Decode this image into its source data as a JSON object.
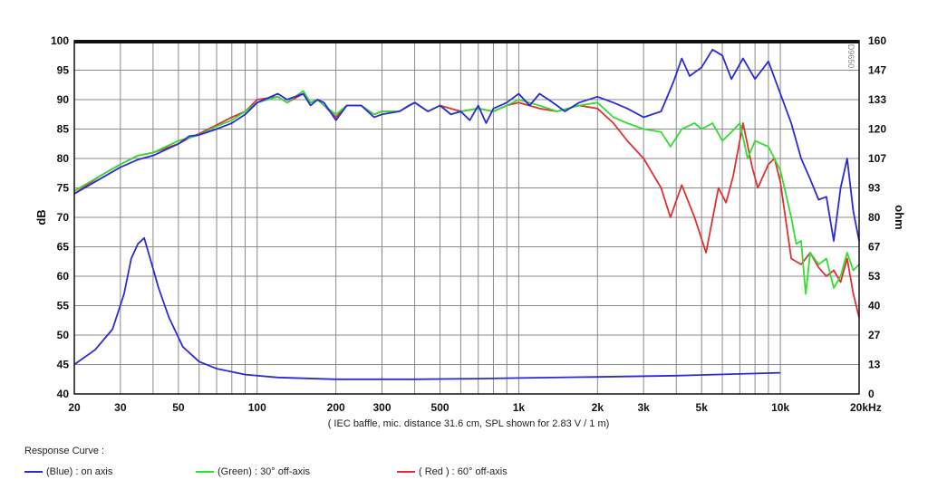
{
  "chart_data": {
    "type": "line",
    "title": "",
    "xlabel": "",
    "x_scale": "log",
    "xlim": [
      20,
      20000
    ],
    "x_ticks": [
      {
        "value": 20,
        "label": "20"
      },
      {
        "value": 30,
        "label": "30"
      },
      {
        "value": 50,
        "label": "50"
      },
      {
        "value": 100,
        "label": "100"
      },
      {
        "value": 200,
        "label": "200"
      },
      {
        "value": 300,
        "label": "300"
      },
      {
        "value": 500,
        "label": "500"
      },
      {
        "value": 1000,
        "label": "1k"
      },
      {
        "value": 2000,
        "label": "2k"
      },
      {
        "value": 3000,
        "label": "3k"
      },
      {
        "value": 5000,
        "label": "5k"
      },
      {
        "value": 10000,
        "label": "10k"
      },
      {
        "value": 20000,
        "label": "20kHz"
      }
    ],
    "ylabel": "dB",
    "ylim": [
      40,
      100
    ],
    "y_ticks": [
      "100",
      "95",
      "90",
      "85",
      "80",
      "75",
      "70",
      "65",
      "60",
      "55",
      "50",
      "45",
      "40"
    ],
    "y2label": "ohm",
    "y2_ticks": [
      "160",
      "147",
      "133",
      "120",
      "107",
      "93",
      "80",
      "67",
      "53",
      "40",
      "27",
      "13",
      "0"
    ],
    "grid": true,
    "note": "( IEC baffle, mic. distance 31.6 cm, SPL shown for 2.83 V / 1 m)",
    "watermark": "D9650",
    "legend_title": "Response Curve :",
    "series": [
      {
        "name": "(Blue) : on axis",
        "color": "#2b2bd6",
        "points": [
          [
            20,
            74
          ],
          [
            25,
            76.5
          ],
          [
            30,
            78.5
          ],
          [
            35,
            79.8
          ],
          [
            40,
            80.5
          ],
          [
            50,
            82.5
          ],
          [
            55,
            83.8
          ],
          [
            60,
            84
          ],
          [
            70,
            85
          ],
          [
            80,
            86
          ],
          [
            90,
            87.5
          ],
          [
            100,
            89.5
          ],
          [
            120,
            91
          ],
          [
            130,
            90
          ],
          [
            150,
            91
          ],
          [
            160,
            89
          ],
          [
            170,
            90
          ],
          [
            180,
            89.5
          ],
          [
            200,
            86.5
          ],
          [
            220,
            89
          ],
          [
            250,
            89
          ],
          [
            280,
            87
          ],
          [
            300,
            87.5
          ],
          [
            350,
            88
          ],
          [
            380,
            89
          ],
          [
            400,
            89.5
          ],
          [
            450,
            88
          ],
          [
            500,
            89
          ],
          [
            550,
            87.5
          ],
          [
            600,
            88
          ],
          [
            650,
            86.5
          ],
          [
            700,
            89
          ],
          [
            750,
            86
          ],
          [
            800,
            88.5
          ],
          [
            900,
            89.5
          ],
          [
            1000,
            91
          ],
          [
            1100,
            89
          ],
          [
            1200,
            91
          ],
          [
            1300,
            90
          ],
          [
            1400,
            89
          ],
          [
            1500,
            88
          ],
          [
            1700,
            89.5
          ],
          [
            2000,
            90.5
          ],
          [
            2300,
            89.5
          ],
          [
            2600,
            88.5
          ],
          [
            3000,
            87
          ],
          [
            3500,
            88
          ],
          [
            3900,
            93
          ],
          [
            4200,
            97
          ],
          [
            4500,
            94
          ],
          [
            5000,
            95.5
          ],
          [
            5500,
            98.5
          ],
          [
            6000,
            97.5
          ],
          [
            6500,
            93.5
          ],
          [
            7200,
            97
          ],
          [
            8000,
            93.5
          ],
          [
            9000,
            96.5
          ],
          [
            10000,
            91
          ],
          [
            11000,
            86
          ],
          [
            12000,
            80
          ],
          [
            13000,
            76.5
          ],
          [
            14000,
            73
          ],
          [
            15000,
            73.5
          ],
          [
            16000,
            66
          ],
          [
            17000,
            75
          ],
          [
            18000,
            80
          ],
          [
            19000,
            71
          ],
          [
            20000,
            66
          ]
        ]
      },
      {
        "name": "(Green) : 30° off-axis",
        "color": "#33dd33",
        "points": [
          [
            20,
            74.5
          ],
          [
            25,
            77
          ],
          [
            30,
            79
          ],
          [
            35,
            80.5
          ],
          [
            40,
            81
          ],
          [
            50,
            83
          ],
          [
            55,
            83.5
          ],
          [
            60,
            84
          ],
          [
            70,
            85.5
          ],
          [
            80,
            86.5
          ],
          [
            90,
            88
          ],
          [
            100,
            89.5
          ],
          [
            120,
            90.5
          ],
          [
            130,
            89.5
          ],
          [
            150,
            91.5
          ],
          [
            160,
            89.5
          ],
          [
            170,
            90
          ],
          [
            180,
            89
          ],
          [
            200,
            87.5
          ],
          [
            220,
            89
          ],
          [
            250,
            89
          ],
          [
            280,
            87.5
          ],
          [
            300,
            88
          ],
          [
            350,
            88
          ],
          [
            400,
            89.5
          ],
          [
            450,
            88
          ],
          [
            500,
            89
          ],
          [
            550,
            87.5
          ],
          [
            600,
            88
          ],
          [
            700,
            88.5
          ],
          [
            800,
            88
          ],
          [
            900,
            89
          ],
          [
            1000,
            90
          ],
          [
            1200,
            89
          ],
          [
            1400,
            88
          ],
          [
            1700,
            89
          ],
          [
            2000,
            89.5
          ],
          [
            2300,
            87
          ],
          [
            2600,
            86
          ],
          [
            3000,
            85
          ],
          [
            3500,
            84.5
          ],
          [
            3800,
            82
          ],
          [
            4200,
            85
          ],
          [
            4700,
            86
          ],
          [
            5000,
            85
          ],
          [
            5500,
            86
          ],
          [
            6000,
            83
          ],
          [
            6500,
            84.5
          ],
          [
            7000,
            86
          ],
          [
            7500,
            80
          ],
          [
            8000,
            83
          ],
          [
            9000,
            82
          ],
          [
            10000,
            78
          ],
          [
            11000,
            70
          ],
          [
            11500,
            65.5
          ],
          [
            12000,
            66
          ],
          [
            12500,
            57
          ],
          [
            13000,
            64
          ],
          [
            14000,
            62
          ],
          [
            15000,
            63
          ],
          [
            16000,
            58
          ],
          [
            17000,
            60
          ],
          [
            18000,
            64
          ],
          [
            19000,
            61
          ],
          [
            20000,
            62
          ]
        ]
      },
      {
        "name": "( Red ) : 60° off-axis",
        "color": "#e03030",
        "points": [
          [
            20,
            74
          ],
          [
            25,
            77
          ],
          [
            30,
            79
          ],
          [
            35,
            80.5
          ],
          [
            40,
            81
          ],
          [
            50,
            82.5
          ],
          [
            55,
            83.5
          ],
          [
            60,
            84.2
          ],
          [
            70,
            85.7
          ],
          [
            80,
            87
          ],
          [
            90,
            88
          ],
          [
            100,
            90
          ],
          [
            120,
            90.5
          ],
          [
            130,
            89.5
          ],
          [
            150,
            91
          ],
          [
            160,
            89.5
          ],
          [
            170,
            90
          ],
          [
            180,
            89
          ],
          [
            200,
            87
          ],
          [
            220,
            89
          ],
          [
            250,
            89
          ],
          [
            280,
            87.5
          ],
          [
            300,
            88
          ],
          [
            350,
            88
          ],
          [
            400,
            89.5
          ],
          [
            450,
            88
          ],
          [
            500,
            89
          ],
          [
            600,
            88
          ],
          [
            700,
            88.5
          ],
          [
            800,
            88
          ],
          [
            900,
            89
          ],
          [
            1000,
            89.5
          ],
          [
            1200,
            88.5
          ],
          [
            1400,
            88
          ],
          [
            1700,
            89
          ],
          [
            2000,
            88.5
          ],
          [
            2300,
            86
          ],
          [
            2600,
            83
          ],
          [
            3000,
            80
          ],
          [
            3500,
            75
          ],
          [
            3800,
            70
          ],
          [
            4200,
            75.5
          ],
          [
            4700,
            70
          ],
          [
            5200,
            64
          ],
          [
            5800,
            75
          ],
          [
            6200,
            72.5
          ],
          [
            6600,
            77
          ],
          [
            7200,
            86
          ],
          [
            7800,
            78.5
          ],
          [
            8200,
            75
          ],
          [
            9000,
            79
          ],
          [
            9500,
            80
          ],
          [
            10000,
            76
          ],
          [
            11000,
            63
          ],
          [
            12000,
            62
          ],
          [
            13000,
            64
          ],
          [
            14000,
            61.5
          ],
          [
            15000,
            60
          ],
          [
            16000,
            61
          ],
          [
            17000,
            59
          ],
          [
            18000,
            63
          ],
          [
            19000,
            57
          ],
          [
            20000,
            53
          ]
        ]
      },
      {
        "name": "Impedance",
        "color": "#2b2bd6",
        "axis": "ohm",
        "points": [
          [
            20,
            45
          ],
          [
            24,
            47.5
          ],
          [
            28,
            51
          ],
          [
            31,
            57
          ],
          [
            33,
            63
          ],
          [
            35,
            65.5
          ],
          [
            37,
            66.5
          ],
          [
            39,
            63
          ],
          [
            42,
            58
          ],
          [
            46,
            53
          ],
          [
            52,
            48
          ],
          [
            60,
            45.5
          ],
          [
            70,
            44.3
          ],
          [
            90,
            43.3
          ],
          [
            120,
            42.8
          ],
          [
            200,
            42.5
          ],
          [
            400,
            42.5
          ],
          [
            700,
            42.6
          ],
          [
            1000,
            42.7
          ],
          [
            2000,
            42.9
          ],
          [
            4000,
            43.1
          ],
          [
            7000,
            43.4
          ],
          [
            10000,
            43.6
          ]
        ]
      }
    ]
  }
}
